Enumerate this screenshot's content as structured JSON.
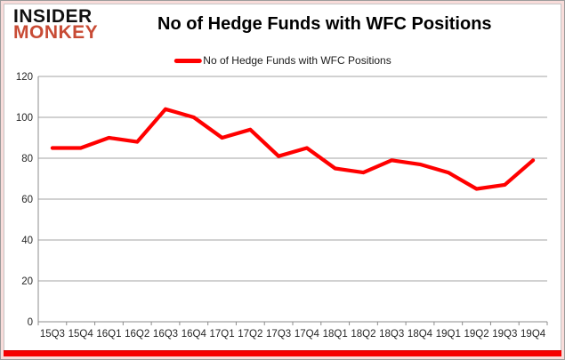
{
  "logo": {
    "line1": "INSIDER",
    "line2": "MONKEY",
    "accent_color": "#c84b35"
  },
  "header": {
    "title": "No of Hedge Funds with WFC Positions"
  },
  "legend": {
    "label": "No of Hedge Funds with WFC Positions",
    "color": "#ff0000"
  },
  "chart_data": {
    "type": "line",
    "title": "No of Hedge Funds with WFC Positions",
    "categories": [
      "15Q3",
      "15Q4",
      "16Q1",
      "16Q2",
      "16Q3",
      "16Q4",
      "17Q1",
      "17Q2",
      "17Q3",
      "17Q4",
      "18Q1",
      "18Q2",
      "18Q3",
      "18Q4",
      "19Q1",
      "19Q2",
      "19Q3",
      "19Q4"
    ],
    "series": [
      {
        "name": "No of Hedge Funds with WFC Positions",
        "color": "#ff0000",
        "values": [
          85,
          85,
          90,
          88,
          104,
          100,
          90,
          94,
          81,
          85,
          75,
          73,
          79,
          77,
          73,
          65,
          67,
          79
        ]
      }
    ],
    "ylim": [
      0,
      120
    ],
    "ytick_step": 20,
    "yticks": [
      0,
      20,
      40,
      60,
      80,
      100,
      120
    ],
    "xlabel": "",
    "ylabel": "",
    "grid": "horizontal",
    "legend_position": "top-center",
    "gridline_color": "#a3a3a3",
    "axis_color": "#8c8c8c",
    "tick_label_color": "#262626"
  },
  "frame": {
    "bottom_bar_color": "#f60000",
    "glow_color": "#f8dcda",
    "outer_border_color": "#9b9b9b",
    "inner_border_color": "#c6c6c6"
  }
}
